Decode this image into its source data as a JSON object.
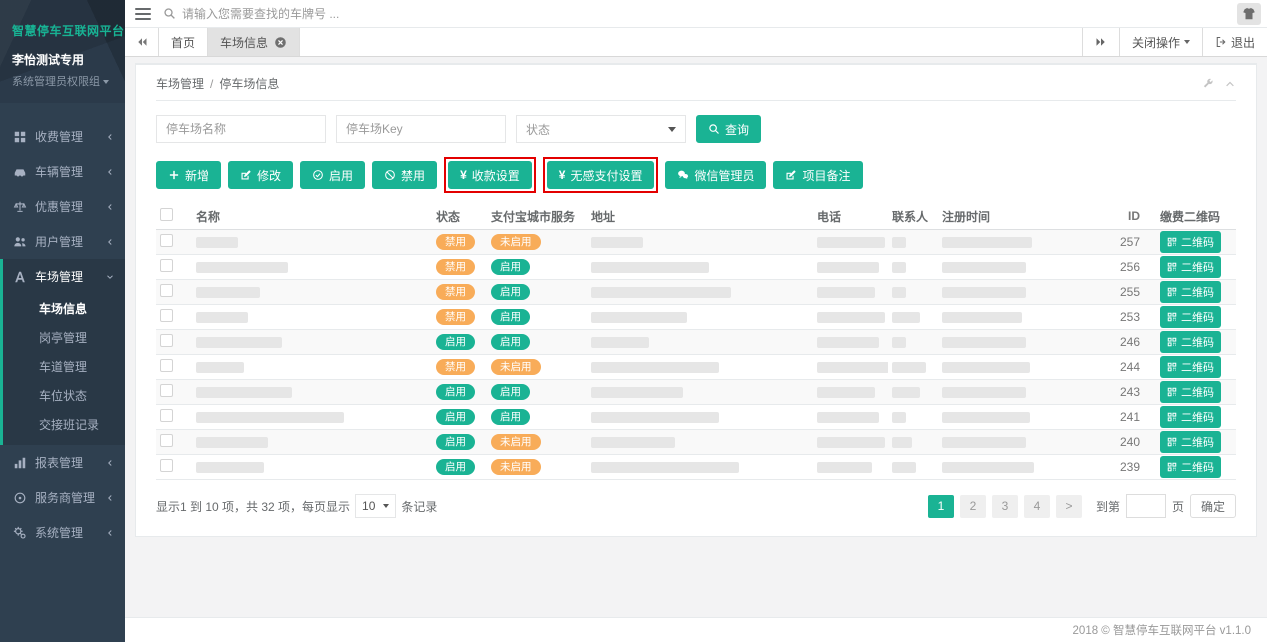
{
  "colors": {
    "primary": "#1ab394",
    "warning": "#f8ac59",
    "sidebar_bg": "#2f4050",
    "highlight_box": "#e30000"
  },
  "sidebar": {
    "logo": "智慧停车互联网平台",
    "user_name": "李怡测试专用",
    "user_role": "系统管理员权限组",
    "items": [
      {
        "label": "收费管理",
        "icon": "grid-icon",
        "expanded": false
      },
      {
        "label": "车辆管理",
        "icon": "car-icon",
        "expanded": false
      },
      {
        "label": "优惠管理",
        "icon": "scale-icon",
        "expanded": false
      },
      {
        "label": "用户管理",
        "icon": "users-icon",
        "expanded": false
      },
      {
        "label": "车场管理",
        "icon": "parking-icon",
        "expanded": true,
        "children": [
          "车场信息",
          "岗亭管理",
          "车道管理",
          "车位状态",
          "交接班记录"
        ],
        "active_child": "车场信息"
      },
      {
        "label": "报表管理",
        "icon": "chart-icon",
        "expanded": false
      },
      {
        "label": "服务商管理",
        "icon": "provider-icon",
        "expanded": false
      },
      {
        "label": "系统管理",
        "icon": "gear-icon",
        "expanded": false
      }
    ]
  },
  "topbar": {
    "search_placeholder": "请输入您需要查找的车牌号 ..."
  },
  "tabbar": {
    "tabs": [
      {
        "label": "首页",
        "active": false,
        "closable": false
      },
      {
        "label": "车场信息",
        "active": true,
        "closable": true
      }
    ],
    "close_ops_label": "关闭操作",
    "logout_label": "退出"
  },
  "breadcrumb": {
    "parent": "车场管理",
    "separator": "/",
    "current": "停车场信息"
  },
  "filters": {
    "name_placeholder": "停车场名称",
    "key_placeholder": "停车场Key",
    "status_placeholder": "状态",
    "search_label": "查询"
  },
  "toolbar": {
    "buttons": [
      {
        "label": "新增",
        "icon": "plus-icon",
        "highlighted": false
      },
      {
        "label": "修改",
        "icon": "edit-icon",
        "highlighted": false
      },
      {
        "label": "启用",
        "icon": "check-circle-icon",
        "highlighted": false
      },
      {
        "label": "禁用",
        "icon": "ban-icon",
        "highlighted": false
      },
      {
        "label": "收款设置",
        "icon": "yen-icon",
        "highlighted": true
      },
      {
        "label": "无感支付设置",
        "icon": "yen-icon",
        "highlighted": true
      },
      {
        "label": "微信管理员",
        "icon": "wechat-icon",
        "highlighted": false
      },
      {
        "label": "项目备注",
        "icon": "edit-icon",
        "highlighted": false
      }
    ]
  },
  "table": {
    "headers": {
      "name": "名称",
      "status": "状态",
      "alipay": "支付宝城市服务",
      "address": "地址",
      "phone": "电话",
      "contact": "联系人",
      "reg_time": "注册时间",
      "id": "ID",
      "qr": "缴费二维码"
    },
    "qr_button_label": "二维码",
    "rows": [
      {
        "id": "257",
        "status": "禁用",
        "alipay": "未启用",
        "blur": [
          42,
          52,
          68,
          14,
          90
        ]
      },
      {
        "id": "256",
        "status": "禁用",
        "alipay": "启用",
        "blur": [
          92,
          118,
          62,
          14,
          84
        ]
      },
      {
        "id": "255",
        "status": "禁用",
        "alipay": "启用",
        "blur": [
          64,
          140,
          58,
          14,
          84
        ]
      },
      {
        "id": "253",
        "status": "禁用",
        "alipay": "启用",
        "blur": [
          52,
          96,
          68,
          28,
          80
        ]
      },
      {
        "id": "246",
        "status": "启用",
        "alipay": "启用",
        "blur": [
          86,
          58,
          62,
          14,
          84
        ]
      },
      {
        "id": "244",
        "status": "禁用",
        "alipay": "未启用",
        "blur": [
          48,
          128,
          72,
          34,
          88
        ]
      },
      {
        "id": "243",
        "status": "启用",
        "alipay": "启用",
        "blur": [
          96,
          92,
          58,
          28,
          84
        ]
      },
      {
        "id": "241",
        "status": "启用",
        "alipay": "启用",
        "blur": [
          148,
          128,
          62,
          14,
          88
        ]
      },
      {
        "id": "240",
        "status": "启用",
        "alipay": "未启用",
        "blur": [
          72,
          84,
          68,
          20,
          84
        ]
      },
      {
        "id": "239",
        "status": "启用",
        "alipay": "未启用",
        "blur": [
          68,
          148,
          55,
          24,
          92
        ]
      }
    ]
  },
  "pagination": {
    "info_prefix": "显示1 到 10 项，共 32 项，每页显示",
    "per_page": "10",
    "info_suffix": "条记录",
    "pages": [
      "1",
      "2",
      "3",
      "4",
      ">"
    ],
    "active_page": "1",
    "goto_label": "到第",
    "goto_unit_label": "页",
    "confirm_label": "确定"
  },
  "footer": {
    "text": "2018 © 智慧停车互联网平台 v1.1.0"
  }
}
